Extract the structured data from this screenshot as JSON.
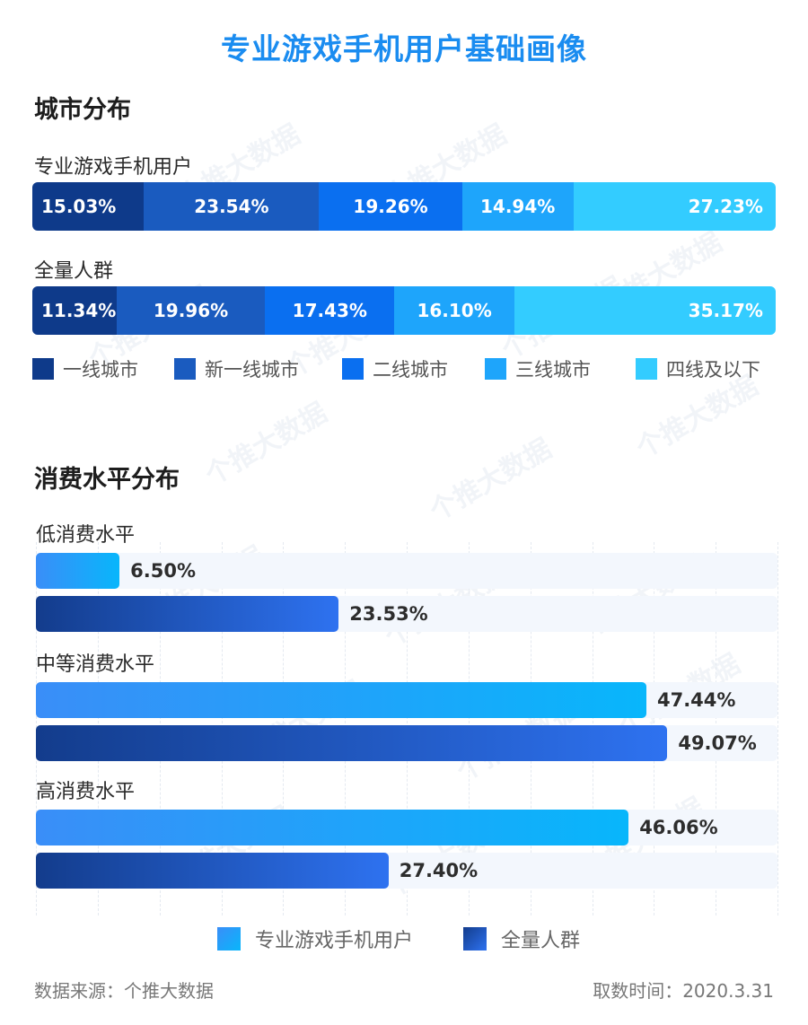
{
  "title": "专业游戏手机用户基础画像",
  "watermark": "个推大数据",
  "city_section": {
    "title": "城市分布",
    "legend": [
      {
        "label": "一线城市",
        "color": "#0e3a8a"
      },
      {
        "label": "新一线城市",
        "color": "#1a5bbf"
      },
      {
        "label": "二线城市",
        "color": "#0a6ff0"
      },
      {
        "label": "三线城市",
        "color": "#1ea5fb"
      },
      {
        "label": "四线及以下",
        "color": "#33ccff"
      }
    ]
  },
  "consumption_section": {
    "title": "消费水平分布",
    "legend": [
      {
        "label": "专业游戏手机用户",
        "color": "#1e9cfb"
      },
      {
        "label": "全量人群",
        "color": "#1a4bb0"
      }
    ]
  },
  "chart_data": [
    {
      "type": "bar",
      "stacked": true,
      "orientation": "horizontal",
      "title": "城市分布",
      "categories": [
        "专业游戏手机用户",
        "全量人群"
      ],
      "series": [
        {
          "name": "一线城市",
          "values": [
            15.03,
            11.34
          ],
          "labels": [
            "15.03%",
            "11.34%"
          ]
        },
        {
          "name": "新一线城市",
          "values": [
            23.54,
            19.96
          ],
          "labels": [
            "23.54%",
            "19.96%"
          ]
        },
        {
          "name": "二线城市",
          "values": [
            19.26,
            17.43
          ],
          "labels": [
            "19.26%",
            "17.43%"
          ]
        },
        {
          "name": "三线城市",
          "values": [
            14.94,
            16.1
          ],
          "labels": [
            "14.94%",
            "16.10%"
          ]
        },
        {
          "name": "四线及以下",
          "values": [
            27.23,
            35.17
          ],
          "labels": [
            "27.23%",
            "35.17%"
          ]
        }
      ],
      "legend": "bottom"
    },
    {
      "type": "bar",
      "orientation": "horizontal",
      "title": "消费水平分布",
      "categories": [
        "低消费水平",
        "中等消费水平",
        "高消费水平"
      ],
      "series": [
        {
          "name": "专业游戏手机用户",
          "values": [
            6.5,
            47.44,
            46.06
          ],
          "labels": [
            "6.50%",
            "47.44%",
            "46.06%"
          ]
        },
        {
          "name": "全量人群",
          "values": [
            23.53,
            49.07,
            27.4
          ],
          "labels": [
            "23.53%",
            "49.07%",
            "27.40%"
          ]
        }
      ],
      "xlim": [
        0,
        60
      ],
      "grid": true,
      "legend": "bottom"
    }
  ],
  "footer": {
    "source": "数据来源：个推大数据",
    "time": "取数时间：2020.3.31"
  }
}
